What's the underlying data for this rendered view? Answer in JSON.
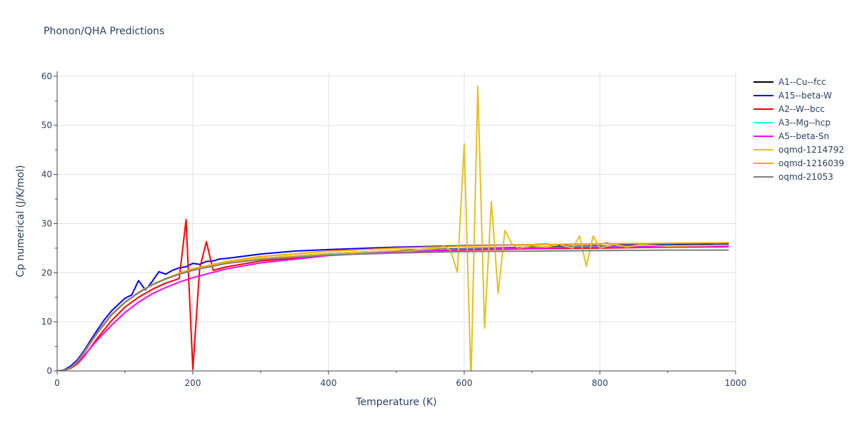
{
  "chart_data": {
    "type": "line",
    "title": "Phonon/QHA Predictions",
    "xlabel": "Temperature (K)",
    "ylabel": "Cp numerical (J/K/mol)",
    "xlim": [
      0,
      1000
    ],
    "ylim": [
      0,
      61
    ],
    "xticks": [
      0,
      200,
      400,
      600,
      800,
      1000
    ],
    "yticks": [
      0,
      10,
      20,
      30,
      40,
      50,
      60
    ],
    "grid": true,
    "legend_position": "right",
    "series": [
      {
        "name": "A1--Cu--fcc",
        "color": "#000000",
        "x": [
          0,
          10,
          20,
          30,
          40,
          50,
          60,
          80,
          100,
          120,
          140,
          160,
          180,
          200,
          250,
          300,
          400,
          500,
          600,
          700,
          800,
          900,
          990
        ],
        "y": [
          0,
          0.1,
          0.8,
          2.1,
          4.0,
          6.0,
          8.0,
          11.5,
          14.0,
          16.0,
          17.6,
          18.8,
          19.8,
          20.6,
          22.0,
          22.9,
          23.9,
          24.5,
          24.9,
          25.2,
          25.4,
          25.6,
          25.8
        ]
      },
      {
        "name": "A15--beta-W",
        "color": "#0000ff",
        "x": [
          0,
          10,
          20,
          30,
          40,
          50,
          60,
          70,
          80,
          90,
          100,
          110,
          120,
          130,
          140,
          150,
          160,
          170,
          180,
          190,
          200,
          210,
          220,
          230,
          240,
          250,
          300,
          350,
          400,
          500,
          600,
          700,
          720,
          740,
          760,
          800,
          810,
          820,
          900,
          960,
          970,
          990
        ],
        "y": [
          0,
          0.2,
          1.0,
          2.3,
          4.2,
          6.4,
          8.5,
          10.5,
          12.2,
          13.5,
          14.8,
          15.5,
          18.4,
          16.5,
          18.2,
          20.2,
          19.7,
          20.5,
          21.0,
          21.2,
          21.9,
          21.7,
          22.3,
          22.4,
          22.8,
          22.9,
          23.8,
          24.4,
          24.7,
          25.2,
          25.5,
          25.7,
          25.8,
          25.6,
          25.8,
          25.8,
          26.0,
          25.8,
          25.9,
          26.0,
          25.7,
          25.9
        ]
      },
      {
        "name": "A2--W--bcc",
        "color": "#ff0000",
        "x": [
          0,
          10,
          20,
          30,
          40,
          50,
          60,
          80,
          100,
          120,
          140,
          160,
          180,
          190,
          200,
          210,
          220,
          230,
          250,
          300,
          400,
          500,
          600,
          700,
          800,
          900,
          990
        ],
        "y": [
          0,
          0.1,
          0.5,
          1.5,
          3.0,
          4.9,
          6.8,
          10.2,
          13.0,
          15.0,
          16.6,
          17.9,
          18.8,
          30.8,
          0.3,
          20.8,
          26.3,
          20.5,
          21.2,
          22.4,
          23.6,
          24.2,
          24.6,
          24.9,
          25.0,
          25.2,
          25.3
        ]
      },
      {
        "name": "A3--Mg--hcp",
        "color": "#00ffff",
        "x": [
          0,
          10,
          20,
          30,
          40,
          50,
          60,
          80,
          100,
          120,
          140,
          160,
          180,
          200,
          250,
          300,
          400,
          500,
          600,
          700,
          800,
          900,
          990
        ],
        "y": [
          0,
          0.1,
          0.7,
          2.0,
          3.8,
          5.9,
          7.9,
          11.4,
          13.9,
          15.9,
          17.5,
          18.7,
          19.7,
          20.5,
          21.9,
          22.8,
          23.8,
          24.4,
          24.8,
          25.1,
          25.3,
          25.5,
          25.6
        ]
      },
      {
        "name": "A5--beta-Sn",
        "color": "#ff00ff",
        "x": [
          0,
          10,
          20,
          30,
          40,
          50,
          60,
          80,
          100,
          120,
          140,
          160,
          180,
          200,
          250,
          300,
          400,
          500,
          600,
          700,
          800,
          900,
          990
        ],
        "y": [
          0,
          0.1,
          0.6,
          1.8,
          3.2,
          4.8,
          6.4,
          9.3,
          11.9,
          14.0,
          15.7,
          17.0,
          18.1,
          19.0,
          20.8,
          22.0,
          23.5,
          24.2,
          24.7,
          25.0,
          25.2,
          25.3,
          25.4
        ]
      },
      {
        "name": "oqmd-1214792",
        "color": "#e6c022",
        "x": [
          0,
          10,
          20,
          30,
          40,
          50,
          60,
          80,
          100,
          120,
          140,
          160,
          180,
          200,
          250,
          300,
          400,
          500,
          520,
          540,
          560,
          570,
          580,
          590,
          600,
          610,
          620,
          630,
          640,
          650,
          660,
          670,
          680,
          700,
          720,
          740,
          760,
          770,
          780,
          790,
          800,
          820,
          840,
          860,
          900,
          990
        ],
        "y": [
          0,
          0.1,
          0.7,
          2.0,
          3.9,
          6.0,
          8.0,
          11.5,
          14.0,
          16.0,
          17.6,
          18.8,
          19.8,
          20.6,
          22.1,
          22.9,
          23.9,
          24.5,
          24.4,
          24.8,
          25.0,
          25.4,
          24.5,
          20.1,
          46.2,
          -2.0,
          58.0,
          8.7,
          34.5,
          15.8,
          28.6,
          25.9,
          25.0,
          25.5,
          25.2,
          25.8,
          25.0,
          27.5,
          21.3,
          27.5,
          25.0,
          25.8,
          25.2,
          25.7,
          25.4,
          25.6
        ]
      },
      {
        "name": "oqmd-1216039",
        "color": "#ffa500",
        "x": [
          0,
          10,
          20,
          30,
          40,
          50,
          60,
          80,
          100,
          120,
          140,
          160,
          180,
          200,
          250,
          300,
          400,
          500,
          600,
          700,
          800,
          900,
          990
        ],
        "y": [
          0,
          0.1,
          0.6,
          1.9,
          3.7,
          5.8,
          7.8,
          11.3,
          13.9,
          15.9,
          17.5,
          18.8,
          19.9,
          20.8,
          22.3,
          23.3,
          24.4,
          25.0,
          25.4,
          25.7,
          25.9,
          26.0,
          26.1
        ]
      },
      {
        "name": "oqmd-21053",
        "color": "#808080",
        "x": [
          0,
          10,
          20,
          30,
          40,
          50,
          60,
          80,
          100,
          120,
          140,
          160,
          180,
          200,
          250,
          300,
          400,
          500,
          600,
          700,
          800,
          900,
          990
        ],
        "y": [
          0,
          0.1,
          0.7,
          2.0,
          3.8,
          5.9,
          7.9,
          11.4,
          14.0,
          15.9,
          17.5,
          18.7,
          19.7,
          20.5,
          21.9,
          22.7,
          23.6,
          24.0,
          24.3,
          24.4,
          24.5,
          24.6,
          24.6
        ]
      }
    ]
  }
}
